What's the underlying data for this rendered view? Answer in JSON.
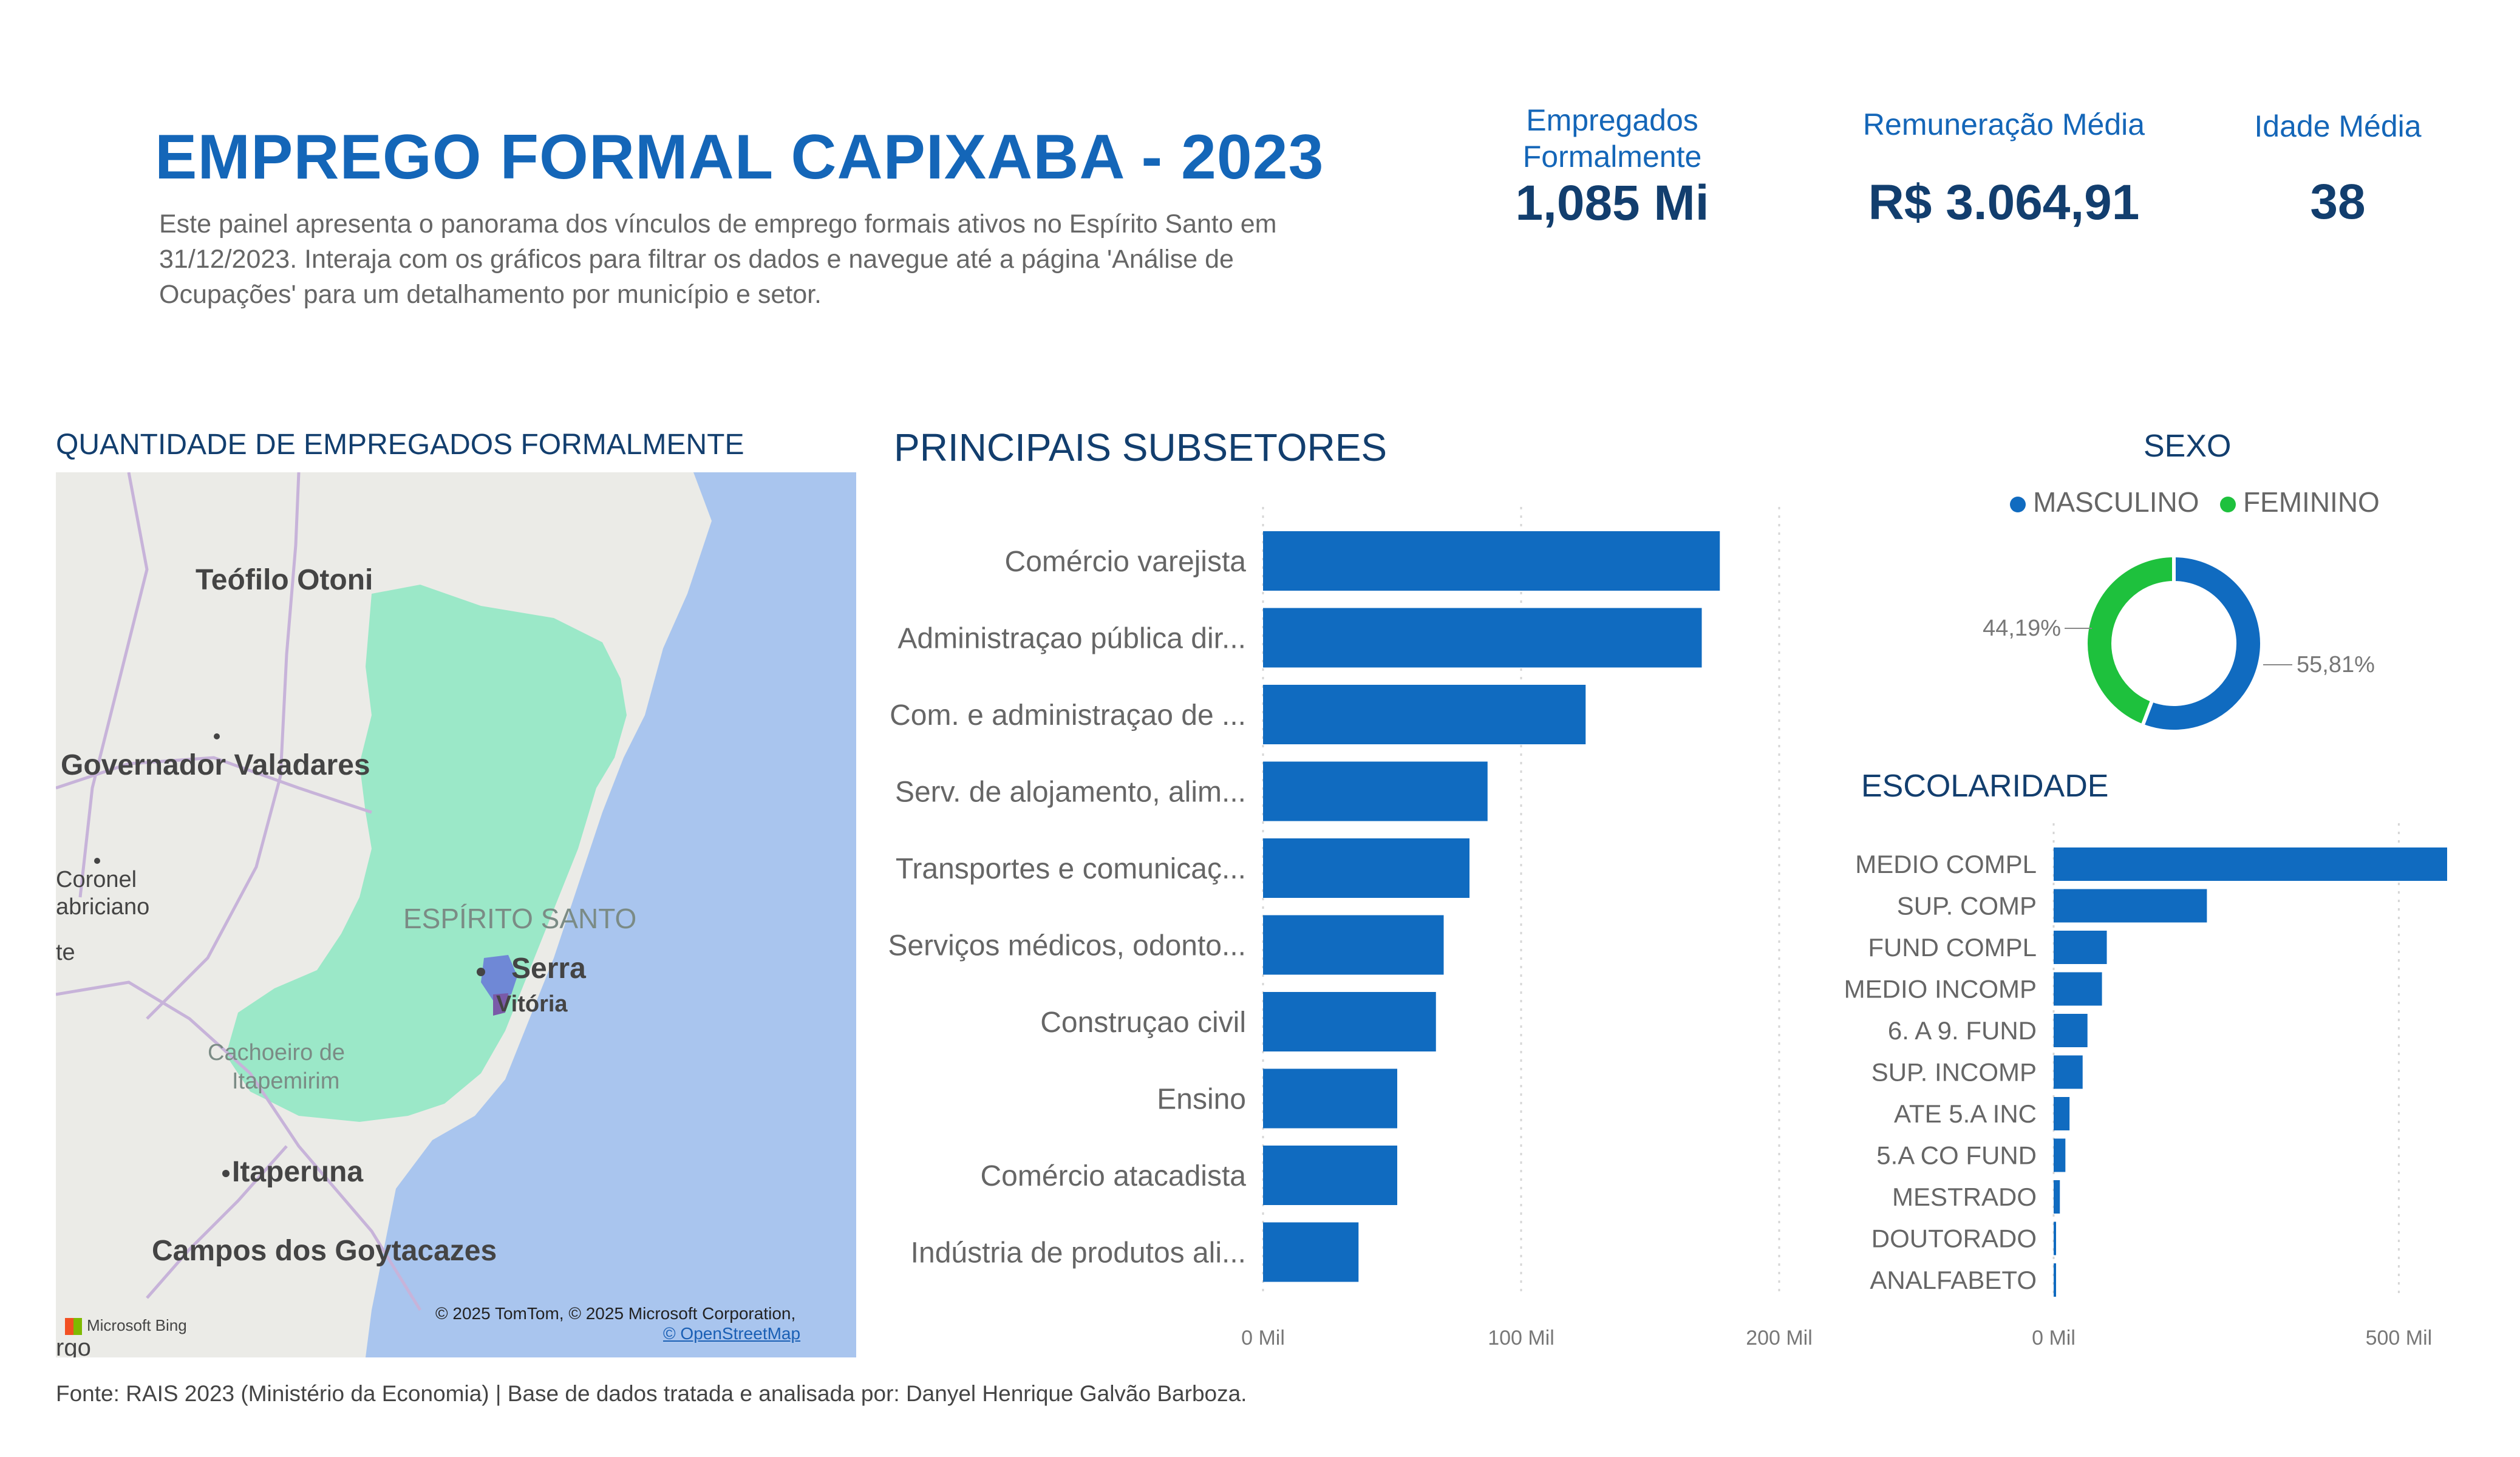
{
  "header": {
    "title": "EMPREGO FORMAL CAPIXABA - 2023",
    "description": "Este painel apresenta o panorama dos vínculos de emprego formais ativos no Espírito Santo em 31/12/2023. Interaja com os gráficos para filtrar os dados e navegue até a página 'Análise de Ocupações' para um detalhamento por município e setor."
  },
  "kpis": {
    "employed": {
      "label_line1": "Empregados",
      "label_line2": "Formalmente",
      "value": "1,085 Mi"
    },
    "salary": {
      "label": "Remuneração Média",
      "value": "R$ 3.064,91"
    },
    "age": {
      "label": "Idade Média",
      "value": "38"
    }
  },
  "map": {
    "title": "QUANTIDADE DE EMPREGADOS FORMALMENTE",
    "labels": {
      "teofilo": "Teófilo Otoni",
      "governador": "Governador Valadares",
      "coronel1": "Coronel",
      "coronel2": "abriciano",
      "ipatinga": "te",
      "state": "ESPÍRITO SANTO",
      "serra": "Serra",
      "vitoria": "Vitória",
      "cachoeiro1": "Cachoeiro de",
      "cachoeiro2": "Itapemirim",
      "itaperuna": "Itaperuna",
      "campos": "Campos dos Goytacazes",
      "bottom_cut": "rgo"
    },
    "attribution": "© 2025 TomTom, © 2025 Microsoft Corporation,",
    "osm": "© OpenStreetMap",
    "bing": "Microsoft Bing",
    "colors": {
      "sea": "#a9c5ee",
      "land": "#ebebe7",
      "state": "#9be8c8",
      "highlight": "#6f88d6"
    }
  },
  "subsetores": {
    "title": "PRINCIPAIS SUBSETORES",
    "tick_labels": [
      "0 Mil",
      "100 Mil",
      "200 Mil"
    ],
    "color": "#106bc0"
  },
  "sexo": {
    "title": "SEXO",
    "legend": [
      {
        "label": "MASCULINO",
        "color": "#106bc0"
      },
      {
        "label": "FEMININO",
        "color": "#1ec13d"
      }
    ],
    "label_fem": "44,19%",
    "label_masc": "55,81%"
  },
  "escolaridade": {
    "title": "ESCOLARIDADE",
    "tick_labels": [
      "0 Mil",
      "500 Mil"
    ],
    "color": "#106bc0"
  },
  "footer": {
    "source": "Fonte: RAIS 2023 (Ministério da Economia) | Base de dados tratada e analisada por: Danyel Henrique Galvão Barboza."
  },
  "chart_data": [
    {
      "type": "bar",
      "orientation": "horizontal",
      "title": "PRINCIPAIS SUBSETORES",
      "categories": [
        "Comércio varejista",
        "Administraçao pública dir...",
        "Com. e administraçao de ...",
        "Serv. de alojamento, alim...",
        "Transportes e comunicaç...",
        "Serviços médicos, odonto...",
        "Construçao civil",
        "Ensino",
        "Comércio atacadista",
        "Indústria de produtos ali..."
      ],
      "values": [
        177,
        170,
        125,
        87,
        80,
        70,
        67,
        52,
        52,
        37
      ],
      "unit": "Mil",
      "xlim": [
        0,
        200
      ],
      "grid": true
    },
    {
      "type": "pie",
      "title": "SEXO",
      "categories": [
        "MASCULINO",
        "FEMININO"
      ],
      "values": [
        55.81,
        44.19
      ],
      "legend": "top"
    },
    {
      "type": "bar",
      "orientation": "horizontal",
      "title": "ESCOLARIDADE",
      "categories": [
        "MEDIO COMPL",
        "SUP. COMP",
        "FUND COMPL",
        "MEDIO INCOMP",
        "6. A 9. FUND",
        "SUP. INCOMP",
        "ATE 5.A INC",
        "5.A CO FUND",
        "MESTRADO",
        "DOUTORADO",
        "ANALFABETO"
      ],
      "values": [
        570,
        222,
        77,
        70,
        49,
        42,
        23,
        17,
        9,
        3,
        2
      ],
      "unit": "Mil",
      "xlim": [
        0,
        570
      ],
      "grid": true
    }
  ]
}
